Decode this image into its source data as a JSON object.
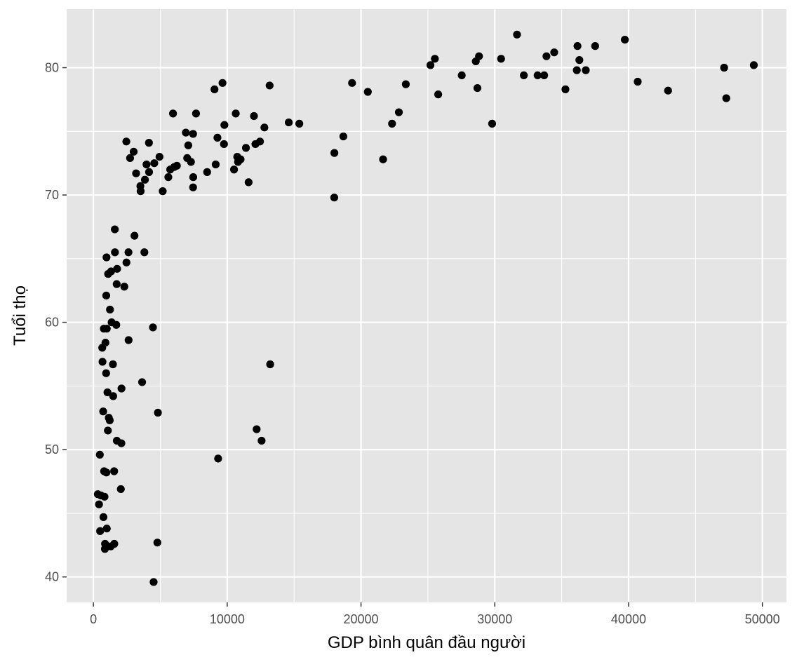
{
  "chart_data": {
    "type": "scatter",
    "title": "",
    "xlabel": "GDP bình quân đầu người",
    "ylabel": "Tuổi thọ",
    "xlim": [
      -2000,
      51800
    ],
    "ylim": [
      38,
      84.6
    ],
    "x_ticks": [
      0,
      10000,
      20000,
      30000,
      40000,
      50000
    ],
    "y_ticks": [
      40,
      50,
      60,
      70,
      80
    ],
    "grid": true,
    "legend": "none",
    "colors": {
      "panel": "#e5e5e5",
      "grid": "#ffffff",
      "point": "#000000"
    },
    "points": [
      [
        330,
        46.5
      ],
      [
        420,
        45.7
      ],
      [
        480,
        49.6
      ],
      [
        500,
        43.6
      ],
      [
        560,
        46.4
      ],
      [
        660,
        58.0
      ],
      [
        680,
        56.9
      ],
      [
        730,
        53.0
      ],
      [
        750,
        44.7
      ],
      [
        780,
        59.5
      ],
      [
        800,
        48.3
      ],
      [
        830,
        46.3
      ],
      [
        860,
        42.2
      ],
      [
        870,
        42.6
      ],
      [
        900,
        58.4
      ],
      [
        950,
        56.0
      ],
      [
        960,
        62.1
      ],
      [
        970,
        48.2
      ],
      [
        980,
        65.1
      ],
      [
        1000,
        43.8
      ],
      [
        1000,
        59.5
      ],
      [
        1050,
        54.5
      ],
      [
        1080,
        51.5
      ],
      [
        1100,
        63.8
      ],
      [
        1150,
        52.5
      ],
      [
        1220,
        52.3
      ],
      [
        1240,
        61.0
      ],
      [
        1300,
        42.4
      ],
      [
        1320,
        64.0
      ],
      [
        1360,
        60.0
      ],
      [
        1460,
        56.7
      ],
      [
        1480,
        54.2
      ],
      [
        1550,
        48.3
      ],
      [
        1560,
        42.6
      ],
      [
        1600,
        67.3
      ],
      [
        1610,
        65.5
      ],
      [
        1710,
        59.8
      ],
      [
        1740,
        63.0
      ],
      [
        1750,
        50.7
      ],
      [
        1770,
        64.2
      ],
      [
        2050,
        46.9
      ],
      [
        2090,
        50.5
      ],
      [
        2100,
        54.8
      ],
      [
        2310,
        62.8
      ],
      [
        2460,
        74.2
      ],
      [
        2470,
        64.7
      ],
      [
        2620,
        65.5
      ],
      [
        2630,
        58.6
      ],
      [
        2740,
        72.9
      ],
      [
        3010,
        73.4
      ],
      [
        3070,
        66.8
      ],
      [
        3190,
        71.7
      ],
      [
        3510,
        70.7
      ],
      [
        3530,
        70.3
      ],
      [
        3640,
        55.3
      ],
      [
        3810,
        65.5
      ],
      [
        3850,
        71.2
      ],
      [
        3970,
        72.4
      ],
      [
        4150,
        74.1
      ],
      [
        4160,
        71.8
      ],
      [
        4450,
        59.6
      ],
      [
        4500,
        39.6
      ],
      [
        4550,
        72.5
      ],
      [
        4780,
        42.7
      ],
      [
        4820,
        52.9
      ],
      [
        4940,
        73.0
      ],
      [
        5180,
        70.3
      ],
      [
        5600,
        71.4
      ],
      [
        5740,
        72.0
      ],
      [
        5950,
        76.4
      ],
      [
        6040,
        72.2
      ],
      [
        6240,
        72.3
      ],
      [
        6910,
        74.9
      ],
      [
        7010,
        72.9
      ],
      [
        7090,
        73.9
      ],
      [
        7290,
        72.6
      ],
      [
        7450,
        74.8
      ],
      [
        7460,
        71.4
      ],
      [
        7450,
        70.6
      ],
      [
        7670,
        76.4
      ],
      [
        8500,
        71.8
      ],
      [
        9050,
        78.3
      ],
      [
        9140,
        72.4
      ],
      [
        9270,
        74.5
      ],
      [
        9320,
        49.3
      ],
      [
        9650,
        78.8
      ],
      [
        9760,
        74.0
      ],
      [
        9790,
        75.5
      ],
      [
        10510,
        72.0
      ],
      [
        10640,
        76.4
      ],
      [
        10750,
        73.0
      ],
      [
        10810,
        72.6
      ],
      [
        11000,
        72.8
      ],
      [
        11400,
        73.7
      ],
      [
        11600,
        71.0
      ],
      [
        12000,
        76.2
      ],
      [
        12110,
        74.0
      ],
      [
        12200,
        51.6
      ],
      [
        12450,
        74.2
      ],
      [
        12570,
        50.7
      ],
      [
        12780,
        75.3
      ],
      [
        13170,
        78.6
      ],
      [
        13210,
        56.7
      ],
      [
        14600,
        75.7
      ],
      [
        15390,
        75.6
      ],
      [
        18000,
        69.8
      ],
      [
        18010,
        73.3
      ],
      [
        18680,
        74.6
      ],
      [
        19330,
        78.8
      ],
      [
        20510,
        78.1
      ],
      [
        21650,
        72.8
      ],
      [
        22320,
        75.6
      ],
      [
        22830,
        76.5
      ],
      [
        23350,
        78.7
      ],
      [
        25190,
        80.2
      ],
      [
        25520,
        80.7
      ],
      [
        25770,
        77.9
      ],
      [
        27530,
        79.4
      ],
      [
        28580,
        80.5
      ],
      [
        28700,
        78.4
      ],
      [
        28820,
        80.9
      ],
      [
        29800,
        75.6
      ],
      [
        30470,
        80.7
      ],
      [
        31660,
        82.6
      ],
      [
        32170,
        79.4
      ],
      [
        33200,
        79.4
      ],
      [
        33690,
        79.4
      ],
      [
        33860,
        80.9
      ],
      [
        34440,
        81.2
      ],
      [
        35280,
        78.3
      ],
      [
        36130,
        79.8
      ],
      [
        36180,
        81.7
      ],
      [
        36320,
        80.6
      ],
      [
        36800,
        79.8
      ],
      [
        37500,
        81.7
      ],
      [
        39720,
        82.2
      ],
      [
        40680,
        78.9
      ],
      [
        42950,
        78.2
      ],
      [
        47140,
        80.0
      ],
      [
        47300,
        77.6
      ],
      [
        49360,
        80.2
      ]
    ]
  }
}
